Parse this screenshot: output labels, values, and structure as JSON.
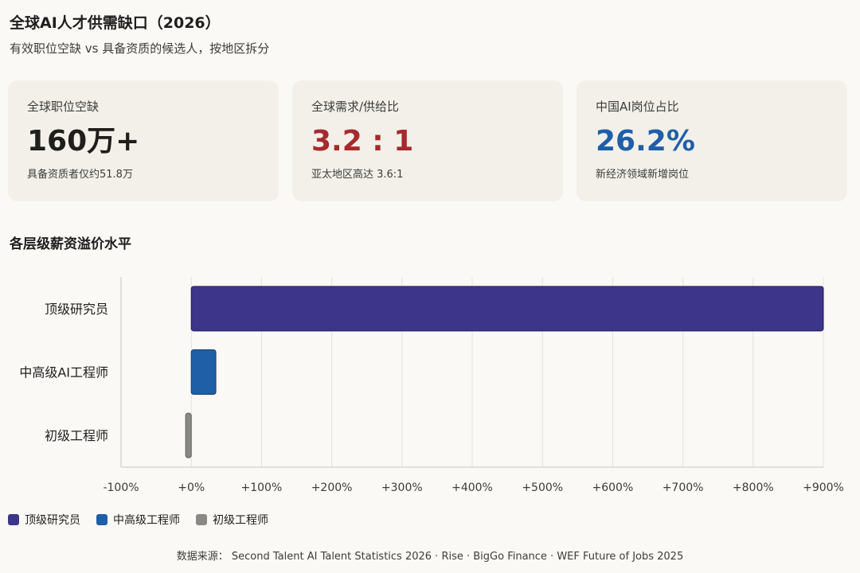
{
  "header": {
    "title": "全球AI人才供需缺口（2026）",
    "subtitle": "有效职位空缺 vs 具备资质的候选人，按地区拆分"
  },
  "cards": [
    {
      "label": "全球职位空缺",
      "value": "160万+",
      "note": "具备资质者仅约51.8万",
      "color": "#1f1e1d"
    },
    {
      "label": "全球需求/供给比",
      "value": "3.2 : 1",
      "note": "亚太地区高达 3.6:1",
      "color": "#a8292c"
    },
    {
      "label": "中国AI岗位占比",
      "value": "26.2%",
      "note": "新经济领域新增岗位",
      "color": "#1e5fa8"
    }
  ],
  "section": {
    "title": "各层级薪资溢价水平"
  },
  "chart_data": {
    "type": "bar",
    "orientation": "horizontal",
    "categories": [
      "顶级研究员",
      "中高级AI工程师",
      "初级工程师"
    ],
    "values": [
      900,
      35,
      -8
    ],
    "value_unit": "%",
    "colors": [
      "#3d3589",
      "#1e5fa8",
      "#8a8a84"
    ],
    "xlim": [
      -100,
      900
    ],
    "xticks": [
      -100,
      0,
      100,
      200,
      300,
      400,
      500,
      600,
      700,
      800,
      900
    ],
    "xtick_labels": [
      "-100%",
      "+0%",
      "+100%",
      "+200%",
      "+300%",
      "+400%",
      "+500%",
      "+600%",
      "+700%",
      "+800%",
      "+900%"
    ],
    "grid": true,
    "legend": [
      "顶级研究员",
      "中高级工程师",
      "初级工程师"
    ],
    "legend_position": "bottom-left"
  },
  "footer": {
    "source": "数据来源：  Second Talent AI Talent Statistics 2026 · Rise · BigGo Finance · WEF Future of Jobs 2025"
  }
}
